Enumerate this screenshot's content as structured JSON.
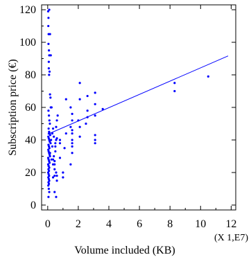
{
  "chart_data": {
    "type": "scatter",
    "title": "",
    "xlabel": "Volume included (KB)",
    "ylabel": "Subscription price (€)",
    "x_multiplier_label": "(X 1,E7)",
    "xlim": [
      -0.4,
      12.3
    ],
    "ylim": [
      -3,
      123
    ],
    "xticks": [
      0,
      2,
      4,
      6,
      8,
      10,
      12
    ],
    "yticks": [
      0,
      20,
      40,
      60,
      80,
      100,
      120
    ],
    "grid": false,
    "colors": {
      "points": "#0000ff",
      "line": "#0000ff",
      "axes": "#000000"
    },
    "series": [
      {
        "x": [
          0.03,
          0.05,
          0.04,
          0.06,
          0.08,
          0.1,
          0.07,
          0.12,
          0.09,
          0.15,
          0.18,
          0.2,
          0.05,
          0.08,
          0.11,
          0.14,
          0.06,
          0.09,
          0.12,
          0.16,
          0.04,
          0.07,
          0.1,
          0.13,
          0.19,
          0.05,
          0.08,
          0.11,
          0.04,
          0.06,
          0.09,
          0.12,
          0.15,
          0.03,
          0.06,
          0.09,
          0.12,
          0.03,
          0.06,
          0.1,
          0.05,
          0.08,
          0.03,
          0.06,
          0.09,
          0.04,
          0.07,
          0.1,
          0.05,
          0.08,
          0.04,
          0.07,
          0.1,
          0.05,
          0.1,
          0.15,
          0.2,
          0.08,
          0.05,
          0.07,
          0.15,
          0.25,
          0.22,
          0.3,
          0.35,
          0.45,
          0.5,
          0.4,
          0.55,
          0.6,
          0.65,
          0.3,
          0.35,
          0.4,
          0.5,
          0.45,
          0.55,
          0.6,
          0.35,
          0.45,
          0.55,
          0.5,
          0.6,
          0.45,
          0.25,
          0.55,
          0.35,
          0.45,
          0.6,
          0.8,
          1.0,
          0.8,
          1.1,
          1.2,
          0.8,
          1.0,
          1.2,
          1.5,
          1.6,
          1.6,
          1.5,
          1.6,
          1.6,
          1.6,
          1.6,
          1.6,
          1.6,
          1.5,
          2.1,
          2.1,
          2.0,
          2.1,
          2.1,
          2.6,
          2.6,
          2.6,
          2.5,
          3.1,
          3.1,
          3.1,
          3.1,
          3.1,
          3.1,
          3.6,
          8.3,
          8.3,
          10.5
        ],
        "y": [
          119,
          115,
          110,
          105,
          95,
          92,
          88,
          82,
          80,
          68,
          66,
          60,
          58,
          55,
          52,
          50,
          47,
          45,
          44,
          43,
          42,
          41,
          40,
          39,
          38,
          37,
          36,
          35,
          34,
          33,
          32,
          31,
          30,
          29,
          28,
          27,
          26,
          25,
          24,
          23,
          22,
          21,
          20,
          19,
          18,
          17,
          16,
          15,
          14,
          13,
          12,
          10,
          8,
          5,
          120,
          105,
          92,
          44,
          99,
          84,
          32,
          28,
          40,
          36,
          25,
          22,
          38,
          42,
          48,
          52,
          55,
          44,
          47,
          30,
          33,
          27,
          20,
          15,
          17,
          8,
          5,
          36,
          41,
          18,
          60,
          40,
          28,
          25,
          18,
          29,
          17,
          38,
          35,
          44,
          40,
          20,
          65,
          60,
          56,
          52,
          48,
          46,
          44,
          40,
          38,
          36,
          32,
          25,
          75,
          65,
          52,
          48,
          42,
          67,
          58,
          54,
          50,
          69,
          62,
          55,
          43,
          40,
          38,
          59,
          75,
          70,
          79
        ]
      }
    ],
    "trendline": {
      "slope": 4.08,
      "intercept": 43.5,
      "x_range": [
        0,
        11.8
      ]
    }
  }
}
